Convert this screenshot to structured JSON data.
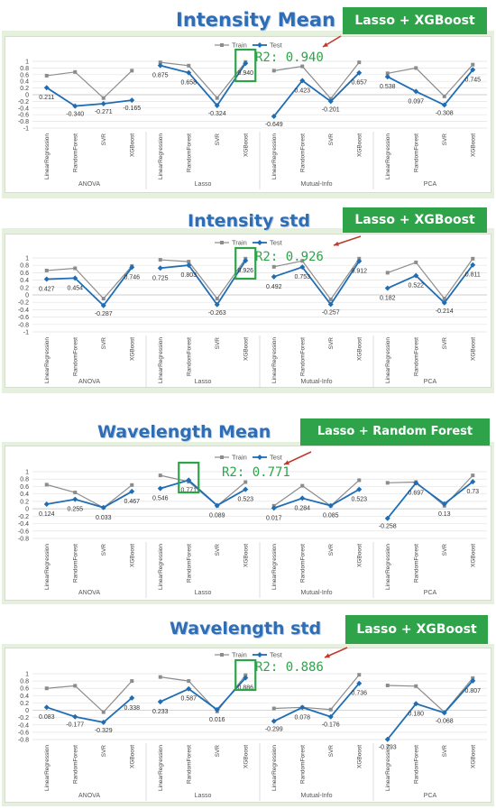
{
  "charts": [
    {
      "title": "Intensity Mean",
      "badge": "Lasso + XGBoost",
      "r2_label": "R2: 0.940",
      "highlight": {
        "group": 1,
        "model": 3
      }
    },
    {
      "title": "Intensity std",
      "badge": "Lasso + XGBoost",
      "r2_label": "R2: 0.926",
      "highlight": {
        "group": 1,
        "model": 3
      }
    },
    {
      "title": "Wavelength Mean",
      "badge": "Lasso + Random Forest",
      "r2_label": "R2: 0.771",
      "highlight": {
        "group": 1,
        "model": 1
      }
    },
    {
      "title": "Wavelength std",
      "badge": "Lasso + XGBoost",
      "r2_label": "R2: 0.886",
      "highlight": {
        "group": 1,
        "model": 3
      }
    }
  ],
  "chart_data": [
    {
      "type": "line",
      "title": "Intensity Mean",
      "groups": [
        "ANOVA",
        "Lasso",
        "Mutual-Info",
        "PCA"
      ],
      "categories": [
        "LinearRegression",
        "RandomForest",
        "SVR",
        "XGBoost"
      ],
      "yticks": [
        "1",
        "0.8",
        "0.6",
        "0.4",
        "0.2",
        "0",
        "-0.2",
        "-0.4",
        "-0.6",
        "-0.8",
        "-1"
      ],
      "ylim": [
        -1,
        1
      ],
      "legend": [
        "Train",
        "Test"
      ],
      "series": [
        {
          "name": "Train",
          "values": [
            0.57,
            0.68,
            -0.1,
            0.72,
            0.97,
            0.87,
            -0.1,
            0.98,
            0.72,
            0.85,
            -0.12,
            0.97,
            0.64,
            0.8,
            -0.05,
            0.9
          ]
        },
        {
          "name": "Test",
          "values": [
            0.211,
            -0.34,
            -0.271,
            -0.165,
            0.875,
            0.658,
            -0.324,
            0.94,
            -0.649,
            0.423,
            -0.201,
            0.657,
            0.538,
            0.097,
            -0.308,
            0.745
          ]
        }
      ],
      "labels": [
        "0.211",
        "-0.340",
        "-0.271",
        "-0.165",
        "0.875",
        "0.658",
        "-0.324",
        "0.940",
        "-0.649",
        "0.423",
        "-0.201",
        "0.657",
        "0.538",
        "0.097",
        "-0.308",
        "0.745"
      ]
    },
    {
      "type": "line",
      "title": "Intensity std",
      "groups": [
        "ANOVA",
        "Lasso",
        "Mutual-Info",
        "PCA"
      ],
      "categories": [
        "LinearRegression",
        "RandomForest",
        "SVR",
        "XGBoost"
      ],
      "yticks": [
        "1",
        "0.8",
        "0.6",
        "0.4",
        "0.2",
        "0",
        "-0.2",
        "-0.4",
        "-0.6",
        "-0.8",
        "-1"
      ],
      "ylim": [
        -1,
        1
      ],
      "legend": [
        "Train",
        "Test"
      ],
      "series": [
        {
          "name": "Train",
          "values": [
            0.66,
            0.72,
            -0.1,
            0.78,
            0.95,
            0.9,
            -0.1,
            0.98,
            0.76,
            0.92,
            -0.12,
            0.98,
            0.6,
            0.88,
            -0.1,
            0.98
          ]
        },
        {
          "name": "Test",
          "values": [
            0.427,
            0.454,
            -0.287,
            0.746,
            0.725,
            0.803,
            -0.263,
            0.926,
            0.492,
            0.753,
            -0.257,
            0.912,
            0.182,
            0.522,
            -0.214,
            0.811
          ]
        }
      ],
      "labels": [
        "0.427",
        "0.454",
        "-0.287",
        "0.746",
        "0.725",
        "0.803",
        "-0.263",
        "0.926",
        "0.492",
        "0.753",
        "-0.257",
        "0.912",
        "0.182",
        "0.522",
        "-0.214",
        "0.811"
      ]
    },
    {
      "type": "line",
      "title": "Wavelength Mean",
      "groups": [
        "ANOVA",
        "Lasso",
        "Mutual-Info",
        "PCA"
      ],
      "categories": [
        "LinearRegression",
        "RandomForest",
        "SVR",
        "XGBoost"
      ],
      "yticks": [
        "1",
        "0.8",
        "0.6",
        "0.4",
        "0.2",
        "0",
        "-0.2",
        "-0.4",
        "-0.6",
        "-0.8"
      ],
      "ylim": [
        -0.8,
        1
      ],
      "legend": [
        "Train",
        "Test"
      ],
      "series": [
        {
          "name": "Train",
          "values": [
            0.65,
            0.44,
            0.03,
            0.64,
            0.9,
            0.73,
            0.08,
            0.72,
            0.08,
            0.62,
            0.08,
            0.77,
            0.7,
            0.72,
            0.08,
            0.9
          ]
        },
        {
          "name": "Test",
          "values": [
            0.124,
            0.255,
            0.033,
            0.467,
            0.546,
            0.771,
            0.089,
            0.523,
            0.017,
            0.284,
            0.085,
            0.523,
            -0.258,
            0.697,
            0.13,
            0.73
          ]
        }
      ],
      "labels": [
        "0.124",
        "0.255",
        "0.033",
        "0.467",
        "0.546",
        "0.771",
        "0.089",
        "0.523",
        "0.017",
        "0.284",
        "0.085",
        "0.523",
        "-0.258",
        "0.697",
        "0.13",
        "0.73"
      ]
    },
    {
      "type": "line",
      "title": "Wavelength std",
      "groups": [
        "ANOVA",
        "Lasso",
        "Mutual-Info",
        "PCA"
      ],
      "categories": [
        "LinearRegression",
        "RandomForest",
        "SVR",
        "XGBoost"
      ],
      "yticks": [
        "1",
        "0.8",
        "0.6",
        "0.4",
        "0.2",
        "0",
        "-0.2",
        "-0.4",
        "-0.6",
        "-0.8"
      ],
      "ylim": [
        -0.8,
        1
      ],
      "legend": [
        "Train",
        "Test"
      ],
      "series": [
        {
          "name": "Train",
          "values": [
            0.6,
            0.67,
            -0.05,
            0.8,
            0.91,
            0.8,
            -0.03,
            0.96,
            0.05,
            0.08,
            0.02,
            0.97,
            0.68,
            0.66,
            -0.05,
            0.88
          ]
        },
        {
          "name": "Test",
          "values": [
            0.083,
            -0.177,
            -0.329,
            0.338,
            0.233,
            0.587,
            0.016,
            0.886,
            -0.299,
            0.078,
            -0.176,
            0.736,
            -0.793,
            0.18,
            -0.068,
            0.807
          ]
        }
      ],
      "labels": [
        "0.083",
        "-0.177",
        "-0.329",
        "0.338",
        "0.233",
        "0.587",
        "0.016",
        "0.886",
        "-0.299",
        "0.078",
        "-0.176",
        "0.736",
        "-0.793",
        "0.180",
        "-0.068",
        "0.807"
      ]
    }
  ]
}
